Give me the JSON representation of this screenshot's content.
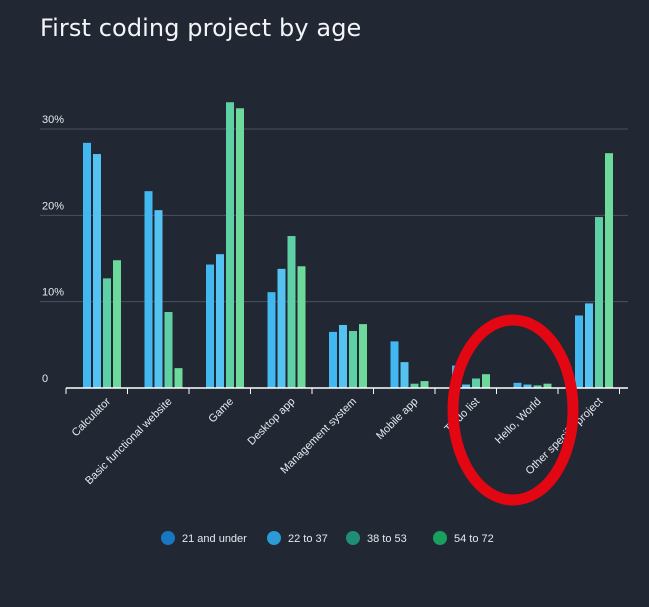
{
  "chart_data": {
    "type": "bar",
    "title": "First coding project by age",
    "xlabel": "",
    "ylabel": "",
    "ylim": [
      0,
      30
    ],
    "y_ticks": [
      {
        "value": 0,
        "label": "0"
      },
      {
        "value": 10,
        "label": "10%"
      },
      {
        "value": 20,
        "label": "20%"
      },
      {
        "value": 30,
        "label": "30%"
      }
    ],
    "categories": [
      "Calculator",
      "Basic functional website",
      "Game",
      "Desktop app",
      "Management system",
      "Mobile app",
      "To-do list",
      "Hello, World",
      "Other specific project"
    ],
    "series": [
      {
        "name": "21 and under",
        "color": "#42b8f0",
        "values": [
          28.4,
          22.8,
          14.3,
          11.1,
          6.5,
          5.4,
          2.6,
          0.6,
          8.4
        ]
      },
      {
        "name": "22 to 37",
        "color": "#55c3f2",
        "values": [
          27.1,
          20.6,
          15.5,
          13.8,
          7.3,
          3.0,
          0.4,
          0.4,
          9.8
        ]
      },
      {
        "name": "38 to 53",
        "color": "#5fcfa6",
        "values": [
          12.7,
          8.8,
          33.1,
          17.6,
          6.6,
          0.5,
          1.1,
          0.3,
          19.8
        ]
      },
      {
        "name": "54 to 72",
        "color": "#6dd99b",
        "values": [
          14.8,
          2.3,
          32.4,
          14.1,
          7.4,
          0.8,
          1.6,
          0.5,
          27.2
        ]
      }
    ],
    "legend": {
      "placement": "bottom-center",
      "items": [
        {
          "label": "21 and under",
          "color": "#1777c3"
        },
        {
          "label": "22 to 37",
          "color": "#2a9bd6"
        },
        {
          "label": "38 to 53",
          "color": "#1e8f74"
        },
        {
          "label": "54 to 72",
          "color": "#19a05f"
        }
      ]
    },
    "annotation": {
      "shape": "ellipse",
      "color": "#e30613",
      "target_category": "Hello, World"
    },
    "grid": true
  }
}
